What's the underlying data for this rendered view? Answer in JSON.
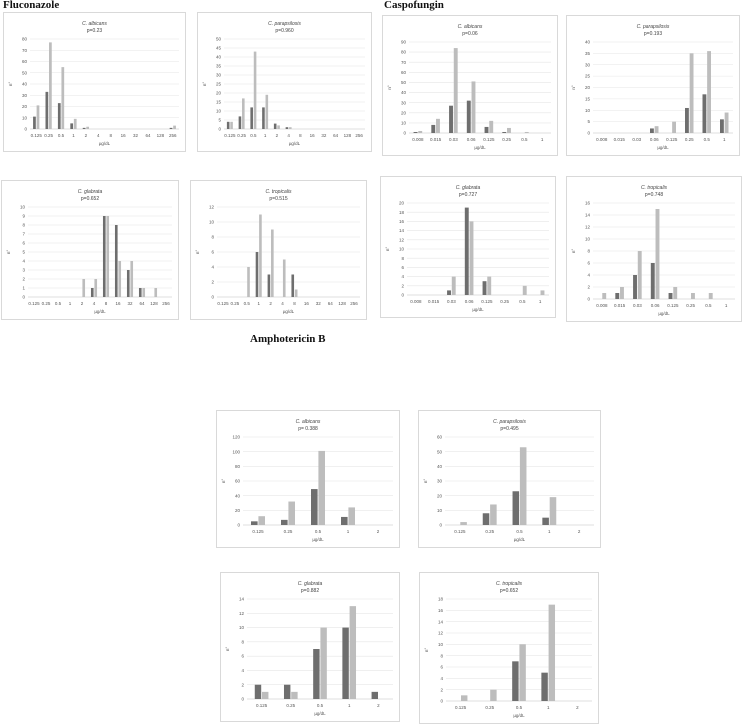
{
  "sections": [
    {
      "key": "fluconazole",
      "title": "Fluconazole"
    },
    {
      "key": "caspofungin",
      "title": "Caspofungin"
    },
    {
      "key": "amphotericin",
      "title": "Amphotericin B"
    }
  ],
  "colors": {
    "series_dark": "#6e6e6e",
    "series_light": "#bdbdbd",
    "grid": "#e6e6e6",
    "border": "#d9d9d9"
  },
  "chart_data": [
    {
      "type": "bar",
      "section": "Fluconazole",
      "title": "C. albicans",
      "subtitle": "p=0.23",
      "categories": [
        "0.125",
        "0.25",
        "0.5",
        "1",
        "2",
        "4",
        "8",
        "16",
        "32",
        "64",
        "128",
        "256"
      ],
      "series": [
        {
          "values": [
            11,
            33,
            23,
            5,
            1,
            0,
            0,
            0,
            0,
            0,
            0,
            1
          ]
        },
        {
          "values": [
            21,
            77,
            55,
            9,
            2,
            0,
            0,
            0,
            0,
            0,
            0,
            3
          ]
        }
      ],
      "xlabel": "µg/dL",
      "ylabel": "n°",
      "ylim": [
        0,
        80
      ],
      "yticks": [
        0,
        10,
        20,
        30,
        40,
        50,
        60,
        70,
        80
      ]
    },
    {
      "type": "bar",
      "section": "Fluconazole",
      "title": "C. parapsilosis",
      "subtitle": "p=0.960",
      "categories": [
        "0.125",
        "0.25",
        "0.5",
        "1",
        "2",
        "4",
        "8",
        "16",
        "32",
        "64",
        "128",
        "256"
      ],
      "series": [
        {
          "values": [
            4,
            7,
            12,
            12,
            3,
            1,
            0,
            0,
            0,
            0,
            0,
            0
          ]
        },
        {
          "values": [
            4,
            17,
            43,
            19,
            2,
            1,
            0,
            0,
            0,
            0,
            0,
            0
          ]
        }
      ],
      "xlabel": "µg/dL",
      "ylabel": "n°",
      "ylim": [
        0,
        50
      ],
      "yticks": [
        0,
        5,
        10,
        15,
        20,
        25,
        30,
        35,
        40,
        45,
        50
      ]
    },
    {
      "type": "bar",
      "section": "Caspofungin",
      "title": "C. albicans",
      "subtitle": "p=0.06",
      "categories": [
        "0.008",
        "0.015",
        "0.03",
        "0.06",
        "0.125",
        "0.25",
        "0.5",
        "1"
      ],
      "series": [
        {
          "values": [
            1,
            8,
            27,
            32,
            6,
            1,
            0,
            0
          ]
        },
        {
          "values": [
            2,
            14,
            84,
            51,
            12,
            5,
            1,
            0
          ]
        }
      ],
      "xlabel": "µg/dL",
      "ylabel": "n°",
      "ylim": [
        0,
        90
      ],
      "yticks": [
        0,
        10,
        20,
        30,
        40,
        50,
        60,
        70,
        80,
        90
      ]
    },
    {
      "type": "bar",
      "section": "Caspofungin",
      "title": "C. parapsilosis",
      "subtitle": "p=0.193",
      "categories": [
        "0.008",
        "0.015",
        "0.03",
        "0.06",
        "0.125",
        "0.25",
        "0.5",
        "1"
      ],
      "series": [
        {
          "values": [
            0,
            0,
            0,
            2,
            0,
            11,
            17,
            6
          ]
        },
        {
          "values": [
            0,
            0,
            0,
            3,
            5,
            35,
            36,
            9
          ]
        }
      ],
      "xlabel": "µg/dL",
      "ylabel": "n°",
      "ylim": [
        0,
        40
      ],
      "yticks": [
        0,
        5,
        10,
        15,
        20,
        25,
        30,
        35,
        40
      ]
    },
    {
      "type": "bar",
      "section": "Fluconazole",
      "title": "C. glabrata",
      "subtitle": "p=0.652",
      "categories": [
        "0.125",
        "0.25",
        "0.5",
        "1",
        "2",
        "4",
        "8",
        "16",
        "32",
        "64",
        "128",
        "256"
      ],
      "series": [
        {
          "values": [
            0,
            0,
            0,
            0,
            0,
            1,
            9,
            8,
            3,
            1,
            0,
            0
          ]
        },
        {
          "values": [
            0,
            0,
            0,
            0,
            2,
            2,
            9,
            4,
            4,
            1,
            1,
            0
          ]
        }
      ],
      "xlabel": "µg/dL",
      "ylabel": "n°",
      "ylim": [
        0,
        10
      ],
      "yticks": [
        0,
        1,
        2,
        3,
        4,
        5,
        6,
        7,
        8,
        9,
        10
      ]
    },
    {
      "type": "bar",
      "section": "Fluconazole",
      "title": "C. tropicalis",
      "subtitle": "p=0.515",
      "categories": [
        "0.125",
        "0.25",
        "0.5",
        "1",
        "2",
        "4",
        "8",
        "16",
        "32",
        "64",
        "128",
        "256"
      ],
      "series": [
        {
          "values": [
            0,
            0,
            0,
            6,
            3,
            0,
            3,
            0,
            0,
            0,
            0,
            0
          ]
        },
        {
          "values": [
            0,
            0,
            4,
            11,
            9,
            5,
            1,
            0,
            0,
            0,
            0,
            0
          ]
        }
      ],
      "xlabel": "µg/dL",
      "ylabel": "n°",
      "ylim": [
        0,
        12
      ],
      "yticks": [
        0,
        2,
        4,
        6,
        8,
        10,
        12
      ]
    },
    {
      "type": "bar",
      "section": "Caspofungin",
      "title": "C. glabrata",
      "subtitle": "p=0.727",
      "categories": [
        "0.008",
        "0.015",
        "0.03",
        "0.06",
        "0.125",
        "0.25",
        "0.5",
        "1"
      ],
      "series": [
        {
          "values": [
            0,
            0,
            1,
            19,
            3,
            0,
            0,
            0
          ]
        },
        {
          "values": [
            0,
            0,
            4,
            16,
            4,
            0,
            2,
            1
          ]
        }
      ],
      "xlabel": "µg/dL",
      "ylabel": "n°",
      "ylim": [
        0,
        20
      ],
      "yticks": [
        0,
        2,
        4,
        6,
        8,
        10,
        12,
        14,
        16,
        18,
        20
      ]
    },
    {
      "type": "bar",
      "section": "Caspofungin",
      "title": "C. tropicalis",
      "subtitle": "p=0.748",
      "categories": [
        "0.008",
        "0.015",
        "0.03",
        "0.06",
        "0.125",
        "0.25",
        "0.5",
        "1"
      ],
      "series": [
        {
          "values": [
            0,
            1,
            4,
            6,
            1,
            0,
            0,
            0
          ]
        },
        {
          "values": [
            1,
            2,
            8,
            15,
            2,
            1,
            1,
            0
          ]
        }
      ],
      "xlabel": "µg/dL",
      "ylabel": "n°",
      "ylim": [
        0,
        16
      ],
      "yticks": [
        0,
        2,
        4,
        6,
        8,
        10,
        12,
        14,
        16
      ]
    },
    {
      "type": "bar",
      "section": "Amphotericin B",
      "title": "C. albicans",
      "subtitle": "p= 0.388",
      "categories": [
        "0.125",
        "0.25",
        "0.5",
        "1",
        "2"
      ],
      "series": [
        {
          "values": [
            5,
            7,
            49,
            11,
            0
          ]
        },
        {
          "values": [
            12,
            32,
            101,
            24,
            0
          ]
        }
      ],
      "xlabel": "µg/dL",
      "ylabel": "n°",
      "ylim": [
        0,
        120
      ],
      "yticks": [
        0,
        20,
        40,
        60,
        80,
        100,
        120
      ]
    },
    {
      "type": "bar",
      "section": "Amphotericin B",
      "title": "C. parapsilosis",
      "subtitle": "p=0.495",
      "categories": [
        "0.125",
        "0.25",
        "0.5",
        "1",
        "2"
      ],
      "series": [
        {
          "values": [
            0,
            8,
            23,
            5,
            0
          ]
        },
        {
          "values": [
            2,
            14,
            53,
            19,
            0
          ]
        }
      ],
      "xlabel": "µg/dL",
      "ylabel": "n°",
      "ylim": [
        0,
        60
      ],
      "yticks": [
        0,
        10,
        20,
        30,
        40,
        50,
        60
      ]
    },
    {
      "type": "bar",
      "section": "Amphotericin B",
      "title": "C. glabrata",
      "subtitle": "p=0.882",
      "categories": [
        "0.125",
        "0.25",
        "0.5",
        "1",
        "2"
      ],
      "series": [
        {
          "values": [
            2,
            2,
            7,
            10,
            1
          ]
        },
        {
          "values": [
            1,
            1,
            10,
            13,
            0
          ]
        }
      ],
      "xlabel": "µg/dL",
      "ylabel": "n°",
      "ylim": [
        0,
        14
      ],
      "yticks": [
        0,
        2,
        4,
        6,
        8,
        10,
        12,
        14
      ]
    },
    {
      "type": "bar",
      "section": "Amphotericin B",
      "title": "C. tropicalis",
      "subtitle": "p=0.652",
      "categories": [
        "0.125",
        "0.25",
        "0.5",
        "1",
        "2"
      ],
      "series": [
        {
          "values": [
            0,
            0,
            7,
            5,
            0
          ]
        },
        {
          "values": [
            1,
            2,
            10,
            17,
            0
          ]
        }
      ],
      "xlabel": "µg/dL",
      "ylabel": "n°",
      "ylim": [
        0,
        18
      ],
      "yticks": [
        0,
        2,
        4,
        6,
        8,
        10,
        12,
        14,
        16,
        18
      ]
    }
  ]
}
